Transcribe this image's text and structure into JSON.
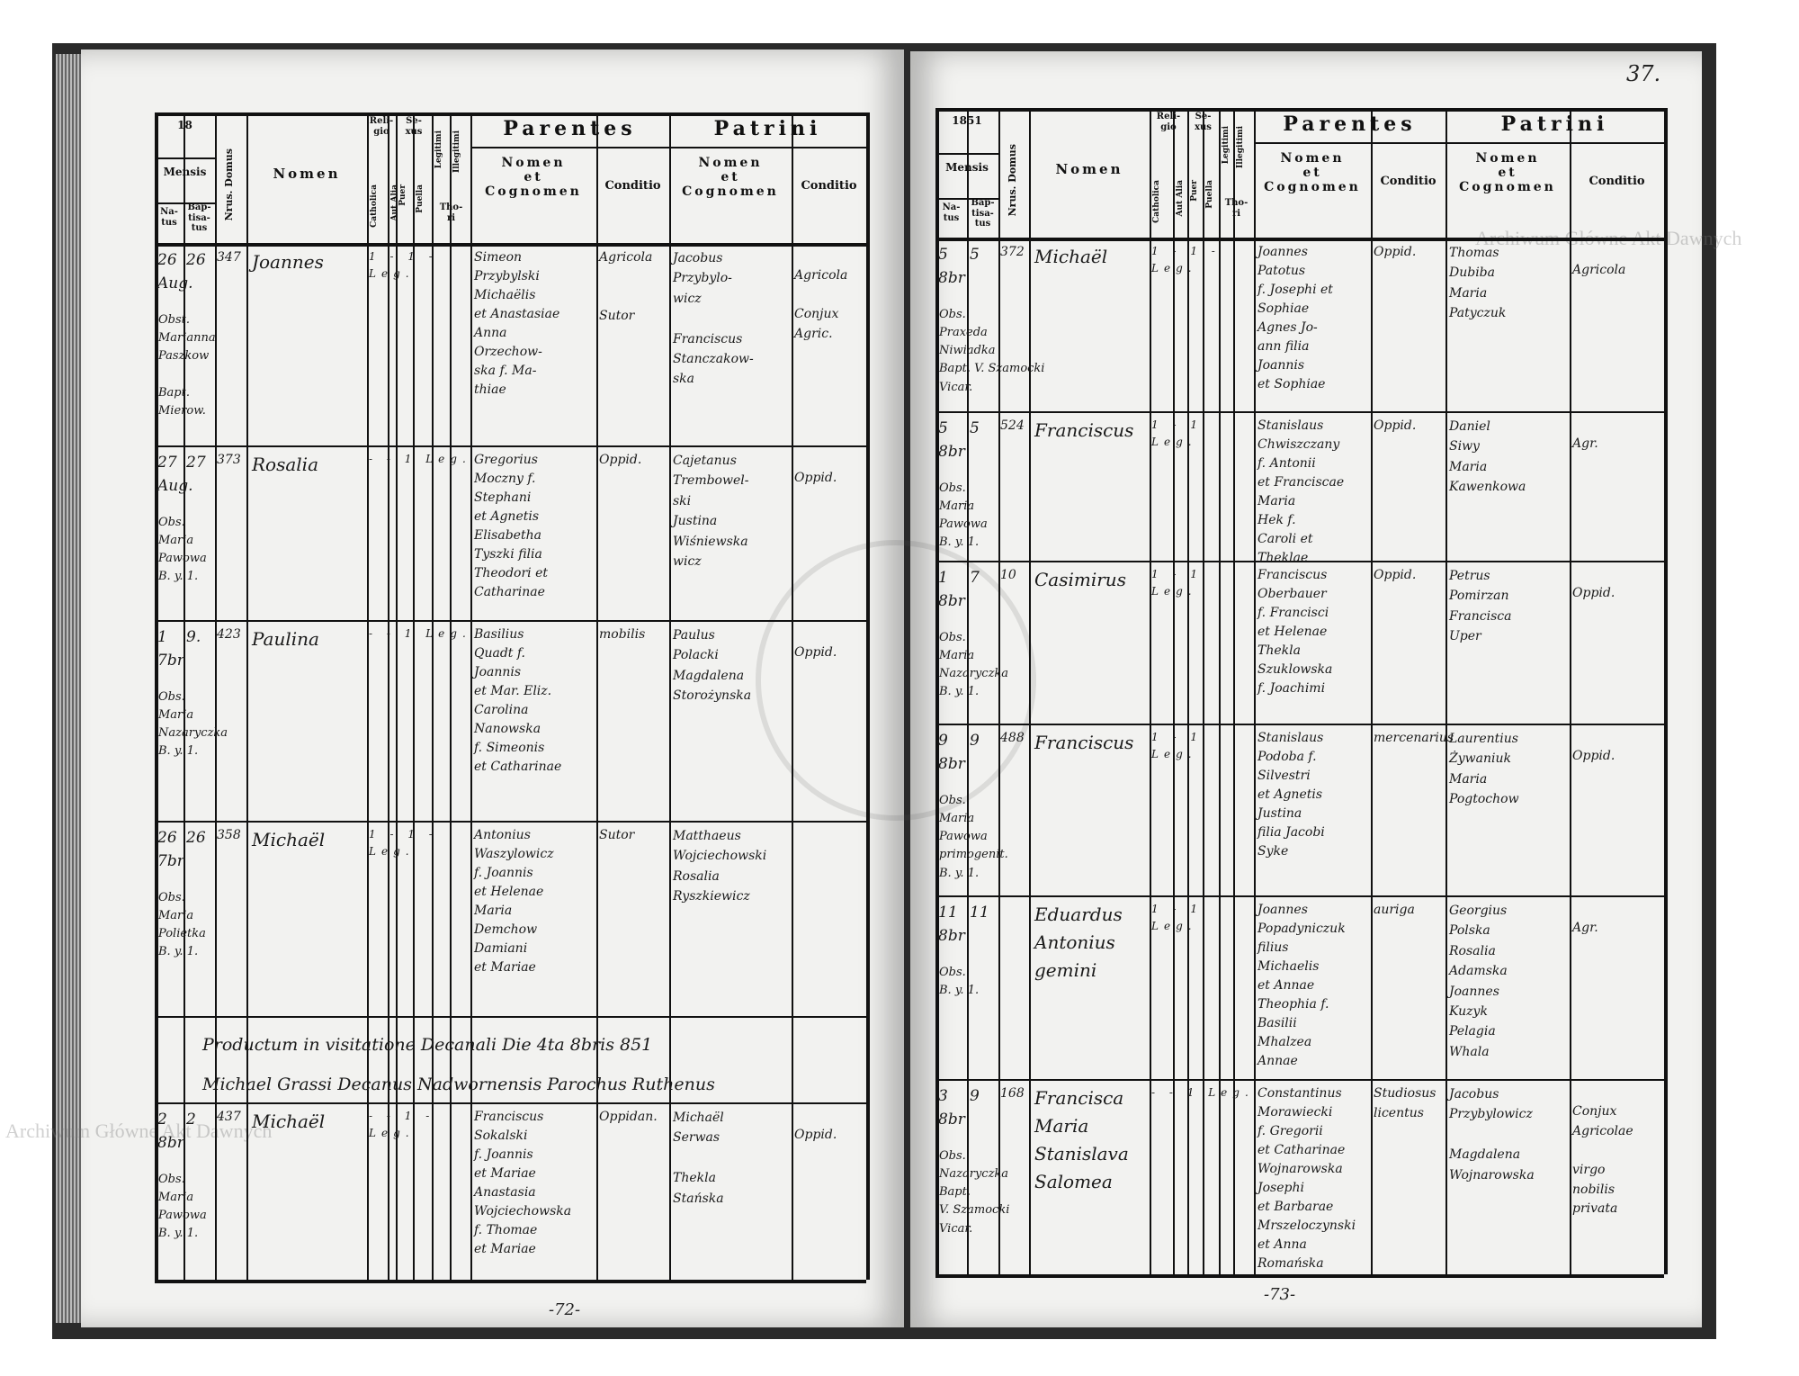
{
  "left_page": {
    "year_label": "18",
    "page_number": "-72-",
    "headers": {
      "mensis": "Mensis",
      "natus": "Na-\ntus",
      "baptisatus": "Bap-\ntisa-\ntus",
      "domus": "Nrus. Domus",
      "nomen": "Nomen",
      "religio": "Reli-\ngio",
      "sexus": "Se-\nxus",
      "catholica": "Catholica",
      "aut_alia": "Aut Alia",
      "puer": "Puer",
      "puella": "Puella",
      "legitimi": "Legitimi",
      "illegitimi": "Illegitimi",
      "thori": "Tho-\nri",
      "parentes": "Parentes",
      "patrini": "Patrini",
      "nomen_cognomen": "Nomen\net\nCognomen",
      "conditio": "Conditio"
    },
    "entries": [
      {
        "natus": "26\nAug.",
        "baptisatus": "26",
        "domus": "347",
        "nomen": "Joannes",
        "marks": "1 - 1 - Leg.",
        "parents": "Simeon\nPrzybylski\nMichaëlis\net Anastasiae\nAnna\nOrzechow-\nska f. Ma-\nthiae",
        "parents_conditio": "Agricola\n\n\nSutor",
        "patrini": "Jacobus\nPrzybylo-\nwicz\n\nFranciscus\nStanczakow-\nska",
        "patrini_conditio": "Agricola\n\nConjux\nAgric.",
        "obstetrix": "Obst.\nMarianna\nPaszkow\n\nBapt.\nMierow."
      },
      {
        "natus": "27\nAug.",
        "baptisatus": "27",
        "domus": "373",
        "nomen": "Rosalia",
        "marks": "- - 1 Leg.",
        "parents": "Gregorius\nMoczny f.\nStephani\net Agnetis\nElisabetha\nTyszki filia\nTheodori et\nCatharinae",
        "parents_conditio": "Oppid.",
        "patrini": "Cajetanus\nTrembowel-\nski\nJustina\nWiśniewska\nwicz",
        "patrini_conditio": "Oppid.",
        "obstetrix": "Obs.\nMaria\nPawowa\nB. y. 1."
      },
      {
        "natus": "1\n7br",
        "baptisatus": "9.",
        "domus": "423",
        "nomen": "Paulina",
        "marks": "- - 1 Leg.",
        "parents": "Basilius\nQuadt f.\nJoannis\net Mar. Eliz.\nCarolina\nNanowska\nf. Simeonis\net Catharinae",
        "parents_conditio": "mobilis",
        "patrini": "Paulus\nPolacki\nMagdalena\nStorożynska",
        "patrini_conditio": "Oppid.",
        "obstetrix": "Obs.\nMaria\nNazaryczka\nB. y. 1."
      },
      {
        "natus": "26\n7br",
        "baptisatus": "26",
        "domus": "358",
        "nomen": "Michaël",
        "marks": "1 - 1 - Leg.",
        "parents": "Antonius\nWaszylowicz\nf. Joannis\net Helenae\nMaria\nDemchow\nDamiani\net Mariae",
        "parents_conditio": "Sutor",
        "patrini": "Matthaeus\nWojciechowski\nRosalia\nRyszkiewicz",
        "patrini_conditio": "",
        "obstetrix": "Obs.\nMaria\nPolietka\nB. y. 1."
      }
    ],
    "visitation_note": "Productum in visitatione Decanali Die 4ta 8bris 851\nMichael Grassi Decanus Nadwornensis Parochus Ruthenus",
    "last_entry": {
      "natus": "2\n8br",
      "baptisatus": "2",
      "domus": "437",
      "nomen": "Michaël",
      "marks": "- - 1 - Leg.",
      "parents": "Franciscus\nSokalski\nf. Joannis\net Mariae\nAnastasia\nWojciechowska\nf. Thomae\net Mariae",
      "parents_conditio": "Oppidan.",
      "patrini": "Michaël\nSerwas\n\nThekla\nStańska",
      "patrini_conditio": "Oppid.",
      "obstetrix": "Obs.\nMaria\nPawowa\nB. y. 1."
    }
  },
  "right_page": {
    "year_label": "1851",
    "folio_number": "37.",
    "page_number": "-73-",
    "entries": [
      {
        "natus": "5\n8br",
        "baptisatus": "5",
        "domus": "372",
        "nomen": "Michaël",
        "marks": "1 - 1 - Leg.",
        "parents": "Joannes\nPatotus\nf. Josephi et\nSophiae\nAgnes Jo-\nann filia\nJoannis\net Sophiae",
        "parents_conditio": "Oppid.",
        "patrini": "Thomas\nDubiba\nMaria\nPatyczuk",
        "patrini_conditio": "Agricola",
        "obstetrix": "Obs.\nPraxeda\nNiwiadka\nBapt. V. Szamocki\nVicar."
      },
      {
        "natus": "5\n8br",
        "baptisatus": "5",
        "domus": "524",
        "nomen": "Franciscus",
        "marks": "1 - 1 Leg.",
        "parents": "Stanislaus\nChwiszczany\nf. Antonii\net Franciscae\nMaria\nHek f.\nCaroli et\nTheklae",
        "parents_conditio": "Oppid.",
        "patrini": "Daniel\nSiwy\nMaria\nKawenkowa",
        "patrini_conditio": "Agr.",
        "obstetrix": "Obs.\nMaria\nPawowa\nB. y. 1."
      },
      {
        "natus": "1\n8br",
        "baptisatus": "7",
        "domus": "10",
        "nomen": "Casimirus",
        "marks": "1 - 1 Leg.",
        "parents": "Franciscus\nOberbauer\nf. Francisci\net Helenae\nThekla\nSzuklowska\nf. Joachimi",
        "parents_conditio": "Oppid.",
        "patrini": "Petrus\nPomirzan\nFrancisca\nUper",
        "patrini_conditio": "Oppid.",
        "obstetrix": "Obs.\nMaria\nNazaryczka\nB. y. 1."
      },
      {
        "natus": "9\n8br",
        "baptisatus": "9",
        "domus": "488",
        "nomen": "Franciscus",
        "marks": "1 - 1 Leg.",
        "parents": "Stanislaus\nPodoba f.\nSilvestri\net Agnetis\nJustina\nfilia Jacobi\nSyke",
        "parents_conditio": "mercenarius",
        "patrini": "Laurentius\nŻywaniuk\nMaria\nPogtochow",
        "patrini_conditio": "Oppid.",
        "obstetrix": "Obs.\nMaria\nPawowa\nprimogenit.\nB. y. 1."
      },
      {
        "natus": "11\n8br",
        "baptisatus": "11",
        "domus": "",
        "nomen": "Eduardus\nAntonius\ngemini",
        "marks": "1 - 1 Leg.",
        "parents": "Joannes\nPopadyniczuk filius\nMichaelis\net Annae\nTheophia f.\nBasilii\nMhalzea\nAnnae",
        "parents_conditio": "auriga",
        "patrini": "Georgius\nPolska\nRosalia\nAdamska\nJoannes\nKuzyk\nPelagia\nWhala",
        "patrini_conditio": "Agr.",
        "obstetrix": "Obs.\nB. y. 1."
      },
      {
        "natus": "3\n8br",
        "baptisatus": "9",
        "domus": "168",
        "nomen": "Francisca\nMaria\nStanislava\nSalomea",
        "marks": "- - 1 Leg.",
        "parents": "Constantinus\nMorawiecki\nf. Gregorii\net Catharinae\nWojnarowska\nJosephi\net Barbarae\nMrszeloczynski\net Anna\nRomańska",
        "parents_conditio": "Studiosus\nlicentus",
        "patrini": "Jacobus\nPrzybylowicz\n\nMagdalena\nWojnarowska",
        "patrini_conditio": "Conjux\nAgricolae\n\nvirgo\nnobilis\nprivata",
        "obstetrix": "Obs.\nNazaryczka\nBapt.\nV. Szamocki\nVicar."
      }
    ]
  },
  "watermark": "Archiwum Główne Akt Dawnych",
  "seal_text": "ARCHIWUM GŁÓWNE AKT DAWNYCH"
}
